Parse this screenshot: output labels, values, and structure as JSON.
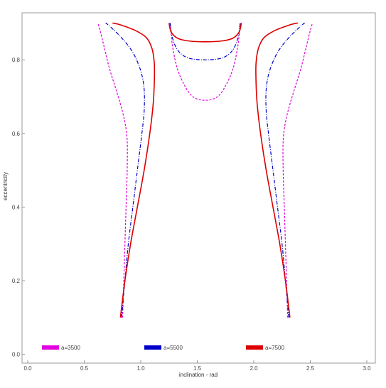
{
  "chart_data": {
    "type": "line",
    "title": "",
    "xlabel": "inclination - rad",
    "ylabel": "eccentricity",
    "xlim": [
      0.0,
      3.0
    ],
    "ylim": [
      -0.02,
      0.92
    ],
    "x_ticks": [
      0.0,
      0.5,
      1.0,
      1.5,
      2.0,
      2.5,
      3.0
    ],
    "x_tick_labels": [
      "0.0",
      "0.5",
      "1.0",
      "1.5",
      "2.0",
      "2.5",
      "3.0"
    ],
    "y_ticks": [
      0.0,
      0.2,
      0.4,
      0.6,
      0.8
    ],
    "y_tick_labels": [
      "0.0",
      "0.2",
      "0.4",
      "0.6",
      "0.8"
    ],
    "grid": false,
    "legend_position": "bottom",
    "series": [
      {
        "name": "a=3500",
        "color": "#e000e0",
        "style": "dashed",
        "branches": [
          {
            "part": "left",
            "points": [
              [
                0.84,
                0.1
              ],
              [
                0.85,
                0.2
              ],
              [
                0.86,
                0.3
              ],
              [
                0.87,
                0.4
              ],
              [
                0.88,
                0.5
              ],
              [
                0.88,
                0.58
              ],
              [
                0.86,
                0.63
              ],
              [
                0.82,
                0.68
              ],
              [
                0.77,
                0.73
              ],
              [
                0.72,
                0.78
              ],
              [
                0.68,
                0.83
              ],
              [
                0.64,
                0.88
              ],
              [
                0.62,
                0.9
              ]
            ]
          },
          {
            "part": "right",
            "points": [
              [
                2.3,
                0.1
              ],
              [
                2.29,
                0.2
              ],
              [
                2.28,
                0.3
              ],
              [
                2.27,
                0.4
              ],
              [
                2.26,
                0.5
              ],
              [
                2.26,
                0.58
              ],
              [
                2.28,
                0.63
              ],
              [
                2.32,
                0.68
              ],
              [
                2.37,
                0.73
              ],
              [
                2.42,
                0.78
              ],
              [
                2.46,
                0.83
              ],
              [
                2.5,
                0.88
              ],
              [
                2.52,
                0.9
              ]
            ]
          },
          {
            "part": "top",
            "points": [
              [
                1.26,
                0.9
              ],
              [
                1.28,
                0.84
              ],
              [
                1.32,
                0.78
              ],
              [
                1.38,
                0.735
              ],
              [
                1.46,
                0.7
              ],
              [
                1.57,
                0.69
              ],
              [
                1.68,
                0.7
              ],
              [
                1.76,
                0.735
              ],
              [
                1.82,
                0.78
              ],
              [
                1.86,
                0.84
              ],
              [
                1.88,
                0.9
              ]
            ]
          }
        ]
      },
      {
        "name": "a=5500",
        "color": "#0000cc",
        "style": "dash-dot",
        "branches": [
          {
            "part": "left",
            "points": [
              [
                0.83,
                0.1
              ],
              [
                0.86,
                0.2
              ],
              [
                0.89,
                0.3
              ],
              [
                0.93,
                0.4
              ],
              [
                0.97,
                0.5
              ],
              [
                1.01,
                0.6
              ],
              [
                1.03,
                0.66
              ],
              [
                1.03,
                0.72
              ],
              [
                1.0,
                0.77
              ],
              [
                0.93,
                0.82
              ],
              [
                0.83,
                0.86
              ],
              [
                0.73,
                0.89
              ],
              [
                0.69,
                0.9
              ]
            ]
          },
          {
            "part": "right",
            "points": [
              [
                2.31,
                0.1
              ],
              [
                2.28,
                0.2
              ],
              [
                2.25,
                0.3
              ],
              [
                2.21,
                0.4
              ],
              [
                2.17,
                0.5
              ],
              [
                2.13,
                0.6
              ],
              [
                2.11,
                0.66
              ],
              [
                2.11,
                0.72
              ],
              [
                2.14,
                0.77
              ],
              [
                2.21,
                0.82
              ],
              [
                2.31,
                0.86
              ],
              [
                2.41,
                0.89
              ],
              [
                2.45,
                0.9
              ]
            ]
          },
          {
            "part": "top",
            "points": [
              [
                1.26,
                0.9
              ],
              [
                1.28,
                0.86
              ],
              [
                1.33,
                0.825
              ],
              [
                1.42,
                0.805
              ],
              [
                1.57,
                0.8
              ],
              [
                1.72,
                0.805
              ],
              [
                1.81,
                0.825
              ],
              [
                1.86,
                0.86
              ],
              [
                1.88,
                0.9
              ]
            ]
          }
        ]
      },
      {
        "name": "a=7500",
        "color": "#dd0000",
        "style": "solid",
        "branches": [
          {
            "part": "left",
            "points": [
              [
                0.82,
                0.1
              ],
              [
                0.86,
                0.2
              ],
              [
                0.91,
                0.3
              ],
              [
                0.97,
                0.4
              ],
              [
                1.03,
                0.5
              ],
              [
                1.08,
                0.6
              ],
              [
                1.11,
                0.68
              ],
              [
                1.12,
                0.74
              ],
              [
                1.12,
                0.79
              ],
              [
                1.1,
                0.83
              ],
              [
                1.05,
                0.86
              ],
              [
                0.95,
                0.88
              ],
              [
                0.82,
                0.895
              ],
              [
                0.75,
                0.9
              ]
            ]
          },
          {
            "part": "right",
            "points": [
              [
                2.32,
                0.1
              ],
              [
                2.28,
                0.2
              ],
              [
                2.23,
                0.3
              ],
              [
                2.17,
                0.4
              ],
              [
                2.11,
                0.5
              ],
              [
                2.06,
                0.6
              ],
              [
                2.03,
                0.68
              ],
              [
                2.02,
                0.74
              ],
              [
                2.02,
                0.79
              ],
              [
                2.04,
                0.83
              ],
              [
                2.09,
                0.86
              ],
              [
                2.19,
                0.88
              ],
              [
                2.32,
                0.895
              ],
              [
                2.39,
                0.9
              ]
            ]
          },
          {
            "part": "top",
            "points": [
              [
                1.25,
                0.9
              ],
              [
                1.27,
                0.875
              ],
              [
                1.33,
                0.858
              ],
              [
                1.43,
                0.851
              ],
              [
                1.57,
                0.849
              ],
              [
                1.71,
                0.851
              ],
              [
                1.81,
                0.858
              ],
              [
                1.87,
                0.875
              ],
              [
                1.89,
                0.9
              ]
            ]
          }
        ]
      }
    ]
  }
}
